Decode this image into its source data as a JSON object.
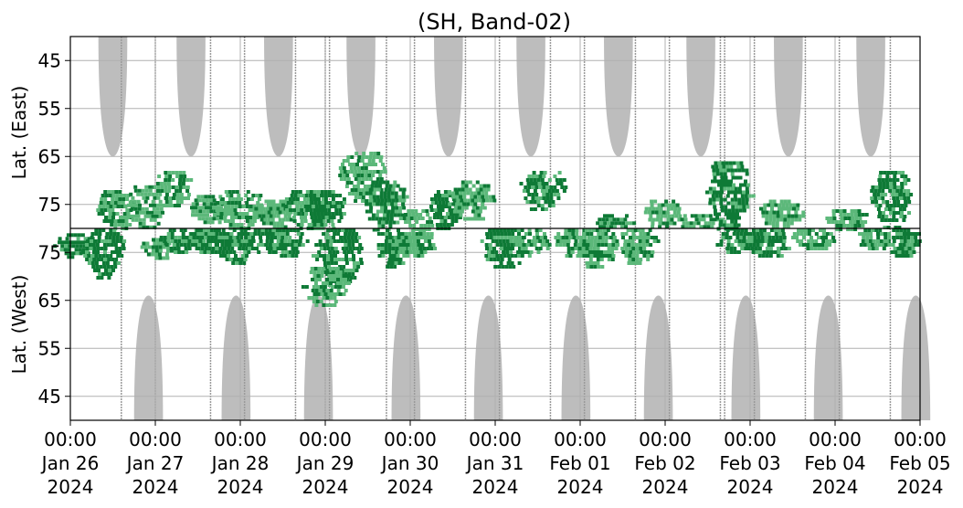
{
  "chart_data": {
    "type": "heatmap",
    "title": "(SH, Band-02)",
    "ylabel_top": "Lat. (East)",
    "ylabel_bottom": "Lat. (West)",
    "xlabel": "",
    "y_axis_note": "Latitude folds at the central horizontal line (~80 deg); upper half = East, lower half = West",
    "ylim": [
      40,
      80
    ],
    "y_ticks_east": [
      "45",
      "55",
      "65",
      "75"
    ],
    "y_ticks_west": [
      "75",
      "65",
      "55",
      "45"
    ],
    "x_ticks": [
      {
        "time": "00:00",
        "date": "Jan 26",
        "year": "2024"
      },
      {
        "time": "00:00",
        "date": "Jan 27",
        "year": "2024"
      },
      {
        "time": "00:00",
        "date": "Jan 28",
        "year": "2024"
      },
      {
        "time": "00:00",
        "date": "Jan 29",
        "year": "2024"
      },
      {
        "time": "00:00",
        "date": "Jan 30",
        "year": "2024"
      },
      {
        "time": "00:00",
        "date": "Jan 31",
        "year": "2024"
      },
      {
        "time": "00:00",
        "date": "Feb 01",
        "year": "2024"
      },
      {
        "time": "00:00",
        "date": "Feb 02",
        "year": "2024"
      },
      {
        "time": "00:00",
        "date": "Feb 03",
        "year": "2024"
      },
      {
        "time": "00:00",
        "date": "Feb 04",
        "year": "2024"
      },
      {
        "time": "00:00",
        "date": "Feb 05",
        "year": "2024"
      }
    ],
    "grid": true,
    "colors": {
      "daylight_shade": "#bdbdbd",
      "daylight_line": "#9a9a9a",
      "echo_dark": "#0e7a36",
      "echo_light": "#5cb87a",
      "grid": "#b0b0b0",
      "divider": "#000000"
    },
    "day_lobes_top": [
      0.5,
      1.42,
      2.45,
      3.42,
      4.45,
      5.42,
      6.45,
      7.42,
      8.45,
      9.42
    ],
    "day_lobes_bottom": [
      0.92,
      1.95,
      2.92,
      3.95,
      4.92,
      5.95,
      6.92,
      7.95,
      8.92,
      9.95
    ],
    "echo_clusters": [
      {
        "day": 0.05,
        "lat_top": 79,
        "lat_bot": 74,
        "side": "west",
        "intensity": 1
      },
      {
        "day": 0.4,
        "lat_top": 80,
        "lat_bot": 70,
        "side": "west",
        "intensity": 1
      },
      {
        "day": 0.55,
        "lat_top": 72,
        "lat_bot": 80,
        "side": "east",
        "intensity": 0
      },
      {
        "day": 0.9,
        "lat_top": 71,
        "lat_bot": 80,
        "side": "east",
        "intensity": 0
      },
      {
        "day": 1.05,
        "lat_top": 78,
        "lat_bot": 74,
        "side": "west",
        "intensity": 0
      },
      {
        "day": 1.2,
        "lat_top": 68,
        "lat_bot": 75,
        "side": "east",
        "intensity": 0
      },
      {
        "day": 1.3,
        "lat_top": 80,
        "lat_bot": 75,
        "side": "west",
        "intensity": 1
      },
      {
        "day": 1.6,
        "lat_top": 80,
        "lat_bot": 76,
        "side": "west",
        "intensity": 0
      },
      {
        "day": 1.65,
        "lat_top": 73,
        "lat_bot": 79,
        "side": "east",
        "intensity": 0
      },
      {
        "day": 2.0,
        "lat_top": 72,
        "lat_bot": 80,
        "side": "east",
        "intensity": 0
      },
      {
        "day": 1.65,
        "lat_top": 80,
        "lat_bot": 75,
        "side": "west",
        "intensity": 1
      },
      {
        "day": 1.95,
        "lat_top": 80,
        "lat_bot": 73,
        "side": "west",
        "intensity": 1
      },
      {
        "day": 2.3,
        "lat_top": 80,
        "lat_bot": 75,
        "side": "west",
        "intensity": 1
      },
      {
        "day": 2.4,
        "lat_top": 74,
        "lat_bot": 80,
        "side": "east",
        "intensity": 0
      },
      {
        "day": 2.8,
        "lat_top": 72,
        "lat_bot": 80,
        "side": "east",
        "intensity": 0
      },
      {
        "day": 2.55,
        "lat_top": 80,
        "lat_bot": 74,
        "side": "west",
        "intensity": 1
      },
      {
        "day": 3.0,
        "lat_top": 72,
        "lat_bot": 80,
        "side": "east",
        "intensity": 1
      },
      {
        "day": 3.15,
        "lat_top": 80,
        "lat_bot": 68,
        "side": "west",
        "intensity": 1
      },
      {
        "day": 3.0,
        "lat_top": 72,
        "lat_bot": 64,
        "side": "west",
        "intensity": 0
      },
      {
        "day": 3.45,
        "lat_top": 64,
        "lat_bot": 74,
        "side": "east",
        "intensity": 0
      },
      {
        "day": 3.7,
        "lat_top": 70,
        "lat_bot": 80,
        "side": "east",
        "intensity": 1
      },
      {
        "day": 3.8,
        "lat_top": 80,
        "lat_bot": 72,
        "side": "west",
        "intensity": 1
      },
      {
        "day": 4.1,
        "lat_top": 76,
        "lat_bot": 80,
        "side": "east",
        "intensity": 0
      },
      {
        "day": 4.05,
        "lat_top": 80,
        "lat_bot": 74,
        "side": "west",
        "intensity": 0
      },
      {
        "day": 4.4,
        "lat_top": 72,
        "lat_bot": 80,
        "side": "east",
        "intensity": 1
      },
      {
        "day": 4.7,
        "lat_top": 70,
        "lat_bot": 78,
        "side": "east",
        "intensity": 0
      },
      {
        "day": 5.1,
        "lat_top": 80,
        "lat_bot": 72,
        "side": "west",
        "intensity": 1
      },
      {
        "day": 5.4,
        "lat_top": 80,
        "lat_bot": 74,
        "side": "west",
        "intensity": 0
      },
      {
        "day": 5.55,
        "lat_top": 68,
        "lat_bot": 76,
        "side": "east",
        "intensity": 1
      },
      {
        "day": 5.9,
        "lat_top": 80,
        "lat_bot": 74,
        "side": "west",
        "intensity": 0
      },
      {
        "day": 6.2,
        "lat_top": 80,
        "lat_bot": 72,
        "side": "west",
        "intensity": 0
      },
      {
        "day": 6.4,
        "lat_top": 77,
        "lat_bot": 80,
        "side": "east",
        "intensity": 1
      },
      {
        "day": 6.65,
        "lat_top": 80,
        "lat_bot": 73,
        "side": "west",
        "intensity": 0
      },
      {
        "day": 6.95,
        "lat_top": 74,
        "lat_bot": 80,
        "side": "east",
        "intensity": 0
      },
      {
        "day": 7.4,
        "lat_top": 77,
        "lat_bot": 80,
        "side": "east",
        "intensity": 0
      },
      {
        "day": 7.75,
        "lat_top": 66,
        "lat_bot": 80,
        "side": "east",
        "intensity": 1
      },
      {
        "day": 7.8,
        "lat_top": 80,
        "lat_bot": 75,
        "side": "west",
        "intensity": 1
      },
      {
        "day": 8.2,
        "lat_top": 80,
        "lat_bot": 74,
        "side": "west",
        "intensity": 1
      },
      {
        "day": 8.35,
        "lat_top": 74,
        "lat_bot": 80,
        "side": "east",
        "intensity": 0
      },
      {
        "day": 8.75,
        "lat_top": 80,
        "lat_bot": 76,
        "side": "west",
        "intensity": 0
      },
      {
        "day": 9.15,
        "lat_top": 76,
        "lat_bot": 80,
        "side": "east",
        "intensity": 0
      },
      {
        "day": 9.45,
        "lat_top": 80,
        "lat_bot": 76,
        "side": "west",
        "intensity": 0
      },
      {
        "day": 9.65,
        "lat_top": 68,
        "lat_bot": 80,
        "side": "east",
        "intensity": 1
      },
      {
        "day": 9.8,
        "lat_top": 80,
        "lat_bot": 74,
        "side": "west",
        "intensity": 1
      }
    ]
  }
}
